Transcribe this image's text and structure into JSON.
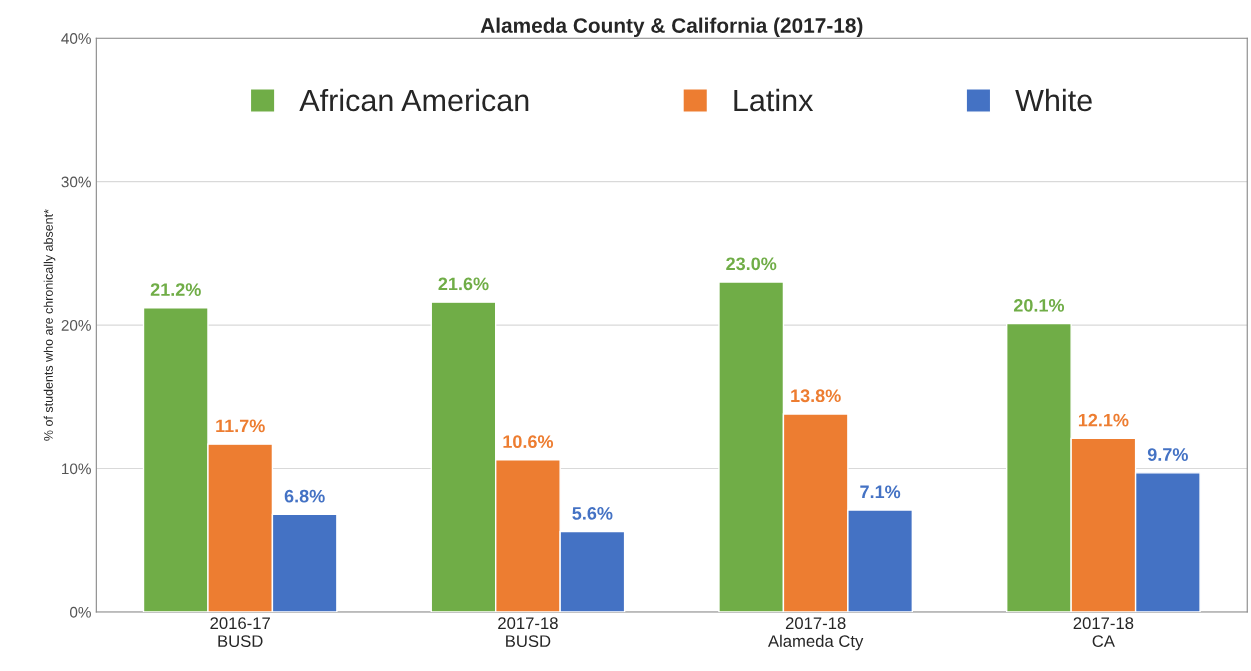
{
  "chart_data": {
    "type": "bar",
    "title": "Alameda County & California (2017-18)",
    "ylabel": "% of students who are chronically absent*",
    "categories": [
      "2016-17\nBUSD",
      "2017-18\nBUSD",
      "2017-18\nAlameda Cty",
      "2017-18\nCA"
    ],
    "series": [
      {
        "name": "African American",
        "color": "#70ad47",
        "values": [
          21.2,
          21.6,
          23.0,
          20.1
        ],
        "value_labels": [
          "21.2%",
          "21.6%",
          "23.0%",
          "20.1%"
        ]
      },
      {
        "name": "Latinx",
        "color": "#ed7d31",
        "values": [
          11.7,
          10.6,
          13.8,
          12.1
        ],
        "value_labels": [
          "11.7%",
          "10.6%",
          "13.8%",
          "12.1%"
        ]
      },
      {
        "name": "White",
        "color": "#4472c4",
        "values": [
          6.8,
          5.6,
          7.1,
          9.7
        ],
        "value_labels": [
          "6.8%",
          "5.6%",
          "7.1%",
          "9.7%"
        ]
      }
    ],
    "ylim": [
      0,
      40
    ],
    "yticks": [
      {
        "value": 0,
        "label": "0%"
      },
      {
        "value": 10,
        "label": "10%"
      },
      {
        "value": 20,
        "label": "20%"
      },
      {
        "value": 30,
        "label": "30%"
      },
      {
        "value": 40,
        "label": "40%"
      }
    ],
    "grid": "y",
    "legend": "top"
  }
}
